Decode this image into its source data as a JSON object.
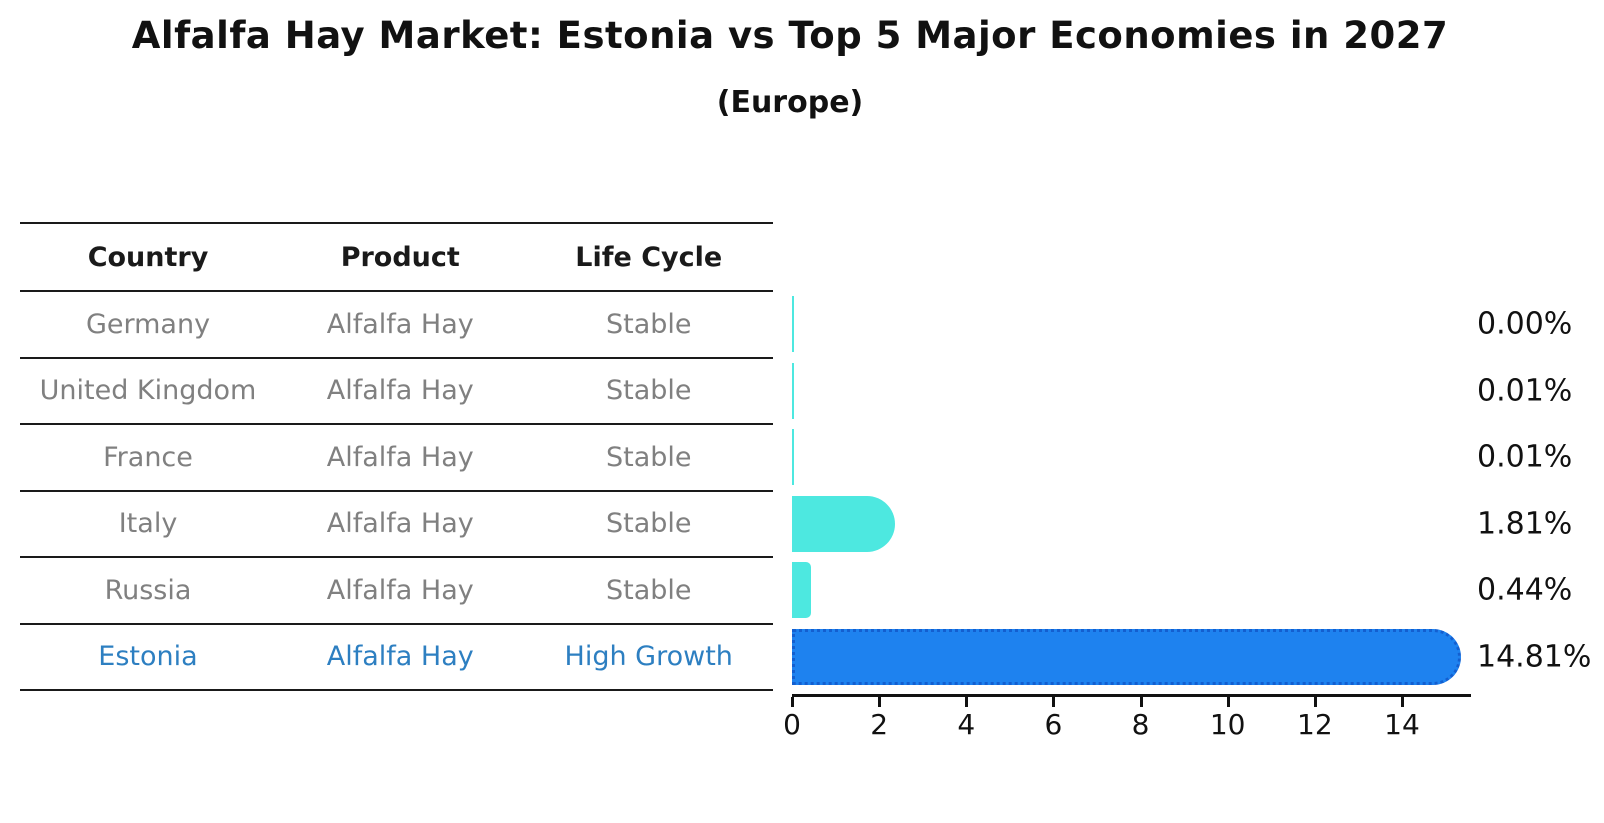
{
  "title": "Alfalfa Hay Market: Estonia vs Top 5 Major Economies in 2027",
  "subtitle": "(Europe)",
  "table": {
    "headers": [
      "Country",
      "Product",
      "Life Cycle"
    ],
    "rows": [
      {
        "country": "Germany",
        "product": "Alfalfa Hay",
        "life_cycle": "Stable",
        "highlight": false
      },
      {
        "country": "United Kingdom",
        "product": "Alfalfa Hay",
        "life_cycle": "Stable",
        "highlight": false
      },
      {
        "country": "France",
        "product": "Alfalfa Hay",
        "life_cycle": "Stable",
        "highlight": false
      },
      {
        "country": "Italy",
        "product": "Alfalfa Hay",
        "life_cycle": "Stable",
        "highlight": false
      },
      {
        "country": "Russia",
        "product": "Alfalfa Hay",
        "life_cycle": "Stable",
        "highlight": false
      },
      {
        "country": "Estonia",
        "product": "Alfalfa Hay",
        "life_cycle": "High Growth",
        "highlight": true
      }
    ]
  },
  "chart_data": {
    "type": "bar",
    "orientation": "horizontal",
    "title": "Alfalfa Hay Market: Estonia vs Top 5 Major Economies in 2027",
    "subtitle": "(Europe)",
    "categories": [
      "Germany",
      "United Kingdom",
      "France",
      "Italy",
      "Russia",
      "Estonia"
    ],
    "values": [
      0.0,
      0.01,
      0.01,
      1.81,
      0.44,
      14.81
    ],
    "value_labels": [
      "0.00%",
      "0.01%",
      "0.01%",
      "1.81%",
      "0.44%",
      "14.81%"
    ],
    "xlabel": "",
    "ylabel": "",
    "xlim": [
      0,
      15.6
    ],
    "x_ticks": [
      0,
      2,
      4,
      6,
      8,
      10,
      12,
      14
    ],
    "grid": false,
    "legend": false,
    "highlight_index": 5,
    "colors": {
      "bar_default": "#4de8e0",
      "bar_highlight": "#1e82ef",
      "bar_highlight_border": "#135fd0",
      "table_text": "#808080",
      "highlight_text": "#2d7fc1",
      "axis_text": "#111111"
    }
  }
}
